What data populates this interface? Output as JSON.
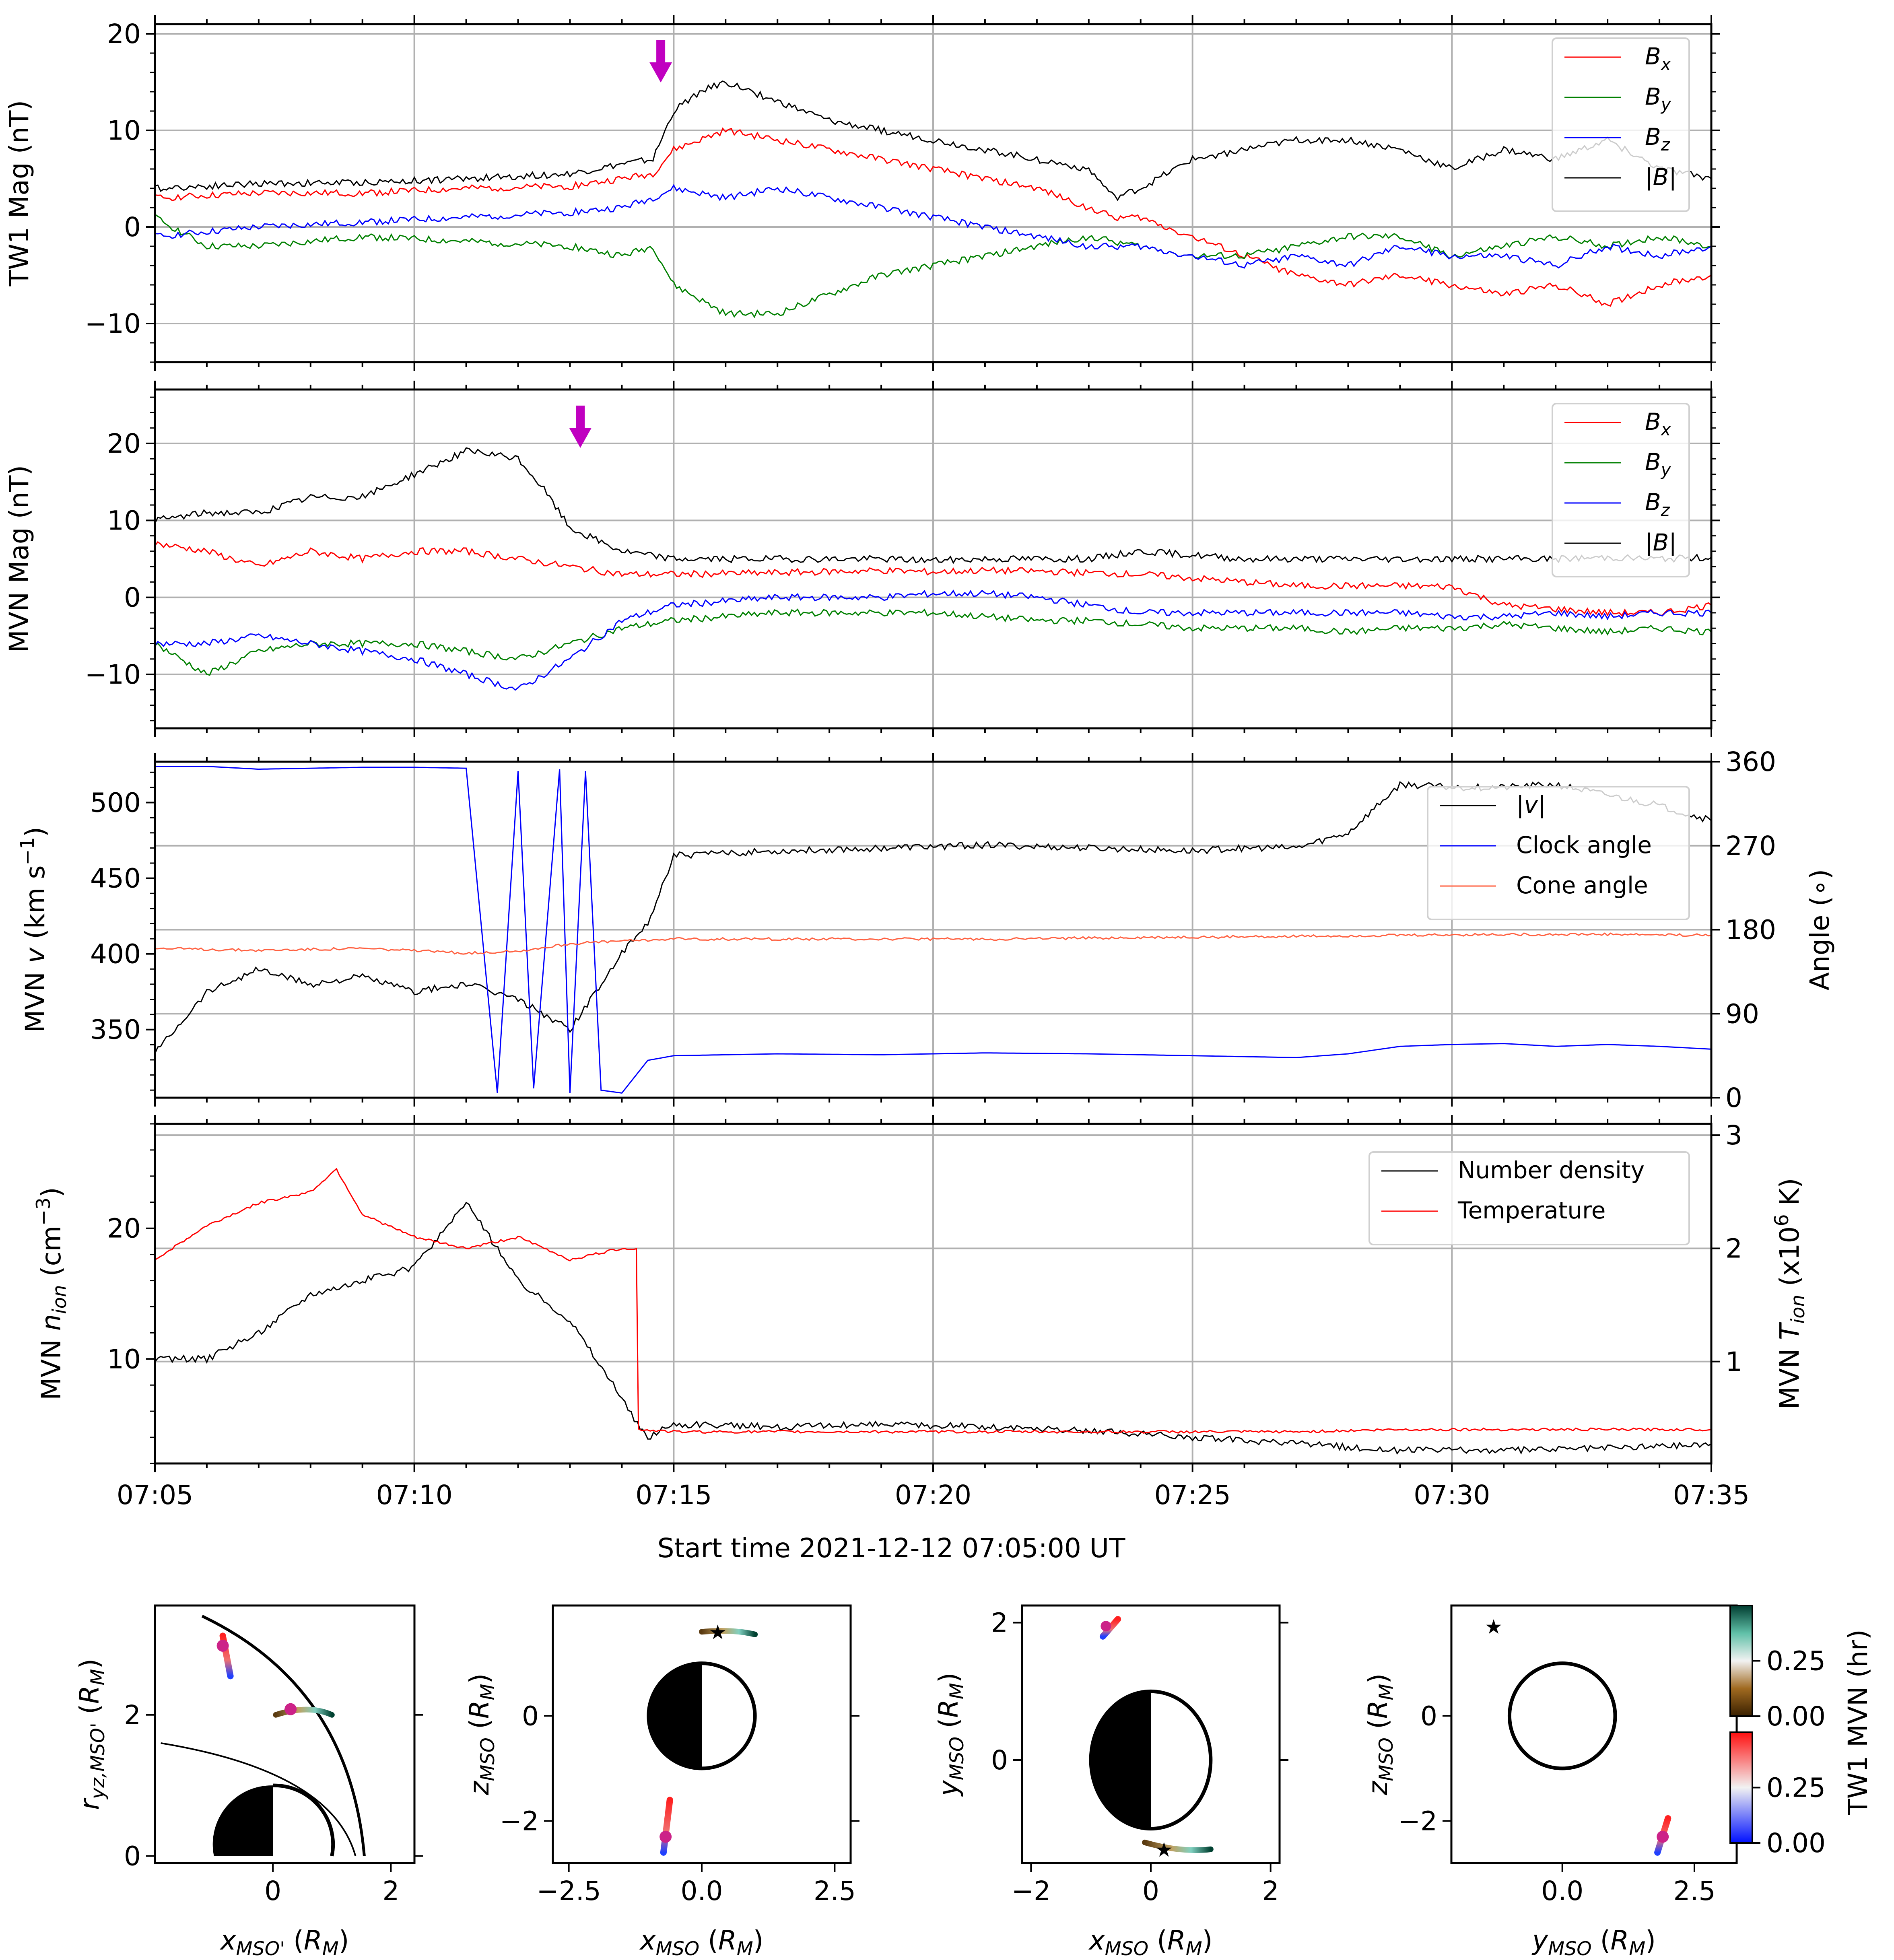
{
  "figure": {
    "xlabel": "Start time 2021-12-12 07:05:00 UT",
    "time_ticks": [
      "07:05",
      "07:10",
      "07:15",
      "07:20",
      "07:25",
      "07:30",
      "07:35"
    ]
  },
  "colors": {
    "bx": "#ff0000",
    "by": "#008000",
    "bz": "#0000ff",
    "bmag": "#000000",
    "arrow": "#c000c0",
    "grid": "#b0b0b0"
  },
  "chart_data": [
    {
      "id": "tw1_mag",
      "type": "line",
      "ylabel": "TW1 Mag (nT)",
      "x_range_min": [
        0,
        30
      ],
      "ylim": [
        -14,
        21
      ],
      "yticks": [
        {
          "v": -10,
          "t": "−10"
        },
        {
          "v": 0,
          "t": "0"
        },
        {
          "v": 10,
          "t": "10"
        },
        {
          "v": 20,
          "t": "20"
        }
      ],
      "legend": [
        "B_x",
        "B_y",
        "B_z",
        "|B|"
      ],
      "arrow_at_min": 9.75,
      "series": [
        {
          "name": "Bx",
          "color": "#ff0000",
          "x": [
            0,
            2,
            4,
            6,
            8,
            9,
            9.6,
            10,
            11,
            12,
            13,
            14,
            15,
            16,
            17,
            18,
            18.5,
            19,
            20,
            21,
            22,
            23,
            24,
            25,
            26,
            27,
            28,
            29,
            30
          ],
          "y": [
            3,
            3.5,
            3.5,
            4,
            4.2,
            5,
            5.5,
            8,
            10,
            9,
            8,
            7,
            6,
            5,
            4,
            2,
            1,
            1,
            -1,
            -3,
            -5,
            -6,
            -5,
            -6,
            -7,
            -6,
            -8,
            -6,
            -5
          ]
        },
        {
          "name": "By",
          "color": "#008000",
          "x": [
            0,
            1,
            2,
            4,
            6,
            8,
            9,
            9.6,
            10,
            11,
            12,
            13,
            14,
            15,
            16,
            17,
            18,
            19,
            20,
            21,
            22,
            23,
            24,
            25,
            26,
            27,
            28,
            29,
            30
          ],
          "y": [
            1,
            -2,
            -2,
            -1,
            -1.5,
            -2,
            -3,
            -2,
            -6,
            -9,
            -9,
            -7,
            -5,
            -4,
            -3,
            -2,
            -1,
            -2,
            -3,
            -3,
            -2,
            -1,
            -1,
            -3,
            -2,
            -1,
            -2,
            -1,
            -2
          ]
        },
        {
          "name": "Bz",
          "color": "#0000ff",
          "x": [
            0,
            2,
            4,
            6,
            8,
            9,
            9.6,
            10,
            11,
            12,
            13,
            14,
            15,
            16,
            17,
            18,
            19,
            20,
            21,
            22,
            23,
            24,
            25,
            26,
            27,
            28,
            29,
            30
          ],
          "y": [
            -1,
            0,
            0.5,
            1,
            1.5,
            2,
            3,
            4,
            3,
            4,
            3,
            2,
            1,
            0,
            -1,
            -2,
            -2,
            -3,
            -4,
            -3,
            -4,
            -2,
            -3,
            -3,
            -4,
            -2,
            -3,
            -2
          ]
        },
        {
          "name": "|B|",
          "color": "#000000",
          "x": [
            0,
            2,
            4,
            6,
            8,
            9,
            9.6,
            10,
            10.5,
            11,
            12,
            13,
            14,
            15,
            16,
            17,
            18,
            18.5,
            19,
            20,
            21,
            22,
            23,
            24,
            25,
            26,
            27,
            28,
            29,
            30
          ],
          "y": [
            4,
            4.5,
            4.6,
            5,
            5.5,
            6.5,
            7,
            12,
            14,
            15,
            13,
            11,
            10,
            9,
            8,
            7,
            6,
            3,
            4,
            7,
            8,
            9,
            9,
            8,
            6,
            8,
            7,
            9,
            6,
            5
          ]
        }
      ]
    },
    {
      "id": "mvn_mag",
      "type": "line",
      "ylabel": "MVN Mag (nT)",
      "x_range_min": [
        0,
        30
      ],
      "ylim": [
        -17,
        27
      ],
      "yticks": [
        {
          "v": -10,
          "t": "−10"
        },
        {
          "v": 0,
          "t": "0"
        },
        {
          "v": 10,
          "t": "10"
        },
        {
          "v": 20,
          "t": "20"
        }
      ],
      "legend": [
        "B_x",
        "B_y",
        "B_z",
        "|B|"
      ],
      "arrow_at_min": 8.2,
      "series": [
        {
          "name": "Bx",
          "color": "#ff0000",
          "x": [
            0,
            1,
            2,
            3,
            4,
            5,
            6,
            7,
            8,
            9,
            10,
            12,
            14,
            15,
            16,
            17,
            18,
            19,
            20,
            21,
            22,
            23,
            24,
            25,
            26,
            27,
            28,
            29,
            30
          ],
          "y": [
            7,
            6,
            4,
            6,
            5,
            6,
            6,
            5,
            4,
            3,
            3,
            3.2,
            3.5,
            3.3,
            3.5,
            3.4,
            3.2,
            3,
            2.5,
            2,
            1.5,
            1.5,
            1.5,
            1.4,
            -1,
            -1.5,
            -2,
            -2,
            -1
          ]
        },
        {
          "name": "By",
          "color": "#008000",
          "x": [
            0,
            1,
            2,
            3,
            4,
            5,
            6,
            7,
            8,
            9,
            10,
            12,
            14,
            15,
            16,
            17,
            18,
            19,
            20,
            21,
            22,
            23,
            24,
            25,
            26,
            27,
            28,
            29,
            30
          ],
          "y": [
            -6,
            -10,
            -7,
            -6,
            -6,
            -6,
            -7,
            -8,
            -6,
            -4,
            -3,
            -2,
            -2,
            -2,
            -2.5,
            -3,
            -3,
            -3.5,
            -4,
            -4,
            -4,
            -4.5,
            -4,
            -4,
            -3.5,
            -4,
            -4.5,
            -4,
            -4.5
          ]
        },
        {
          "name": "Bz",
          "color": "#0000ff",
          "x": [
            0,
            1,
            2,
            3,
            4,
            5,
            6,
            7,
            8,
            9,
            10,
            12,
            14,
            15,
            16,
            17,
            18,
            19,
            20,
            21,
            22,
            23,
            24,
            25,
            26,
            27,
            28,
            29,
            30
          ],
          "y": [
            -6,
            -6,
            -5,
            -6,
            -7,
            -8,
            -10,
            -12,
            -8,
            -3,
            -1,
            0,
            0,
            0.5,
            0.5,
            0,
            -1,
            -2,
            -2,
            -2,
            -2,
            -2,
            -2,
            -2.5,
            -2.5,
            -2,
            -2.5,
            -2,
            -2
          ]
        },
        {
          "name": "|B|",
          "color": "#000000",
          "x": [
            0,
            1,
            2,
            3,
            4,
            5,
            6,
            7,
            7.5,
            8,
            9,
            10,
            12,
            14,
            15,
            16,
            17,
            18,
            19,
            20,
            21,
            22,
            23,
            24,
            25,
            26,
            27,
            28,
            29,
            30
          ],
          "y": [
            10,
            11,
            11,
            13,
            13,
            16,
            19,
            18,
            14,
            9,
            6,
            5,
            5,
            5,
            4.8,
            5,
            5,
            5,
            6,
            5.5,
            5,
            5,
            5,
            5,
            5,
            5,
            5,
            5.2,
            5,
            5.2
          ]
        }
      ]
    },
    {
      "id": "mvn_velocity",
      "type": "line",
      "ylabel": "MVN v (km s⁻¹)",
      "ylabel_right": "Angle (∘)",
      "x_range_min": [
        0,
        30
      ],
      "ylim": [
        305,
        527
      ],
      "ylim_right": [
        0,
        360
      ],
      "yticks": [
        {
          "v": 350,
          "t": "350"
        },
        {
          "v": 400,
          "t": "400"
        },
        {
          "v": 450,
          "t": "450"
        },
        {
          "v": 500,
          "t": "500"
        }
      ],
      "yticks_right": [
        {
          "v": 0,
          "t": "0"
        },
        {
          "v": 90,
          "t": "90"
        },
        {
          "v": 180,
          "t": "180"
        },
        {
          "v": 270,
          "t": "270"
        },
        {
          "v": 360,
          "t": "360"
        }
      ],
      "legend": [
        "|v|",
        "Clock angle",
        "Cone angle"
      ],
      "series": [
        {
          "name": "|v|",
          "axis": "left",
          "color": "#000000",
          "x": [
            0,
            1,
            2,
            3,
            4,
            5,
            6,
            7,
            8,
            9,
            9.5,
            10,
            12,
            14,
            16,
            18,
            20,
            21,
            22,
            23,
            24,
            25,
            26,
            27,
            28,
            29,
            30
          ],
          "y": [
            335,
            375,
            390,
            380,
            385,
            375,
            380,
            370,
            350,
            400,
            420,
            465,
            468,
            470,
            472,
            470,
            468,
            470,
            470,
            480,
            512,
            510,
            510,
            512,
            505,
            498,
            488
          ]
        },
        {
          "name": "Clock angle",
          "axis": "right",
          "color": "#0000ff",
          "x": [
            0,
            1,
            2,
            3,
            4,
            5,
            6,
            6.6,
            7,
            7.3,
            7.8,
            8,
            8.3,
            8.6,
            9,
            9.5,
            10,
            12,
            14,
            16,
            18,
            20,
            21,
            22,
            23,
            24,
            25,
            26,
            27,
            28,
            29,
            30
          ],
          "y": [
            355,
            355,
            352,
            353,
            354,
            354,
            353,
            5,
            350,
            10,
            352,
            5,
            350,
            8,
            5,
            40,
            45,
            47,
            46,
            48,
            47,
            45,
            44,
            43,
            47,
            55,
            57,
            58,
            55,
            57,
            55,
            52
          ]
        },
        {
          "name": "Cone angle",
          "axis": "right",
          "color": "#ff6040",
          "x": [
            0,
            2,
            4,
            6,
            7,
            8,
            9,
            10,
            12,
            14,
            16,
            18,
            20,
            22,
            24,
            26,
            28,
            30
          ],
          "y": [
            160,
            158,
            160,
            155,
            157,
            165,
            168,
            170,
            170,
            170,
            170,
            171,
            172,
            173,
            174,
            175,
            175,
            174
          ]
        }
      ]
    },
    {
      "id": "mvn_density_temp",
      "type": "line",
      "ylabel": "MVN n_ion (cm⁻³)",
      "ylabel_right": "MVN T_ion (x10⁶ K)",
      "x_range_min": [
        0,
        30
      ],
      "ylim": [
        2,
        28
      ],
      "ylim_right": [
        0.1,
        3.1
      ],
      "yticks": [
        {
          "v": 10,
          "t": "10"
        },
        {
          "v": 20,
          "t": "20"
        }
      ],
      "yticks_right": [
        {
          "v": 1,
          "t": "1"
        },
        {
          "v": 2,
          "t": "2"
        },
        {
          "v": 3,
          "t": "3"
        }
      ],
      "legend": [
        "Number density",
        "Temperature"
      ],
      "series": [
        {
          "name": "Number density",
          "axis": "left",
          "color": "#000000",
          "x": [
            0,
            1,
            2,
            3,
            4,
            5,
            6,
            7,
            8,
            9,
            9.3,
            9.5,
            10,
            12,
            14,
            16,
            18,
            20,
            22,
            24,
            26,
            28,
            30
          ],
          "y": [
            10,
            10,
            12,
            15,
            16,
            17,
            22,
            16,
            13,
            7,
            5,
            4,
            5,
            4.8,
            5,
            4.8,
            4.5,
            4,
            3.5,
            3,
            3,
            3.2,
            3.5
          ]
        },
        {
          "name": "Temperature",
          "axis": "right",
          "color": "#ff0000",
          "x": [
            0,
            1,
            2,
            3,
            3.5,
            4,
            5,
            6,
            7,
            8,
            9,
            9.28,
            9.32,
            10,
            12,
            14,
            16,
            18,
            20,
            22,
            24,
            26,
            28,
            30
          ],
          "y": [
            1.9,
            2.2,
            2.4,
            2.5,
            2.7,
            2.3,
            2.1,
            2.0,
            2.1,
            1.9,
            2.0,
            2.0,
            0.4,
            0.38,
            0.38,
            0.38,
            0.38,
            0.38,
            0.38,
            0.38,
            0.4,
            0.4,
            0.4,
            0.4
          ]
        }
      ]
    }
  ],
  "orbit_panels": [
    {
      "id": "cyl",
      "xlabel": "x_MSO' (R_M)",
      "ylabel": "r_yz,MSO' (R_M)",
      "xlim": [
        -2.0,
        2.4
      ],
      "ylim": [
        -0.1,
        3.55
      ],
      "xticks": [
        {
          "v": 0,
          "t": "0"
        },
        {
          "v": 2,
          "t": "2"
        }
      ],
      "yticks": [
        {
          "v": 0,
          "t": "0"
        },
        {
          "v": 2,
          "t": "2"
        }
      ]
    },
    {
      "id": "xz",
      "xlabel": "x_MSO (R_M)",
      "ylabel": "z_MSO (R_M)",
      "xlim": [
        -2.8,
        2.8
      ],
      "ylim": [
        -2.8,
        2.1
      ],
      "xticks": [
        {
          "v": -2.5,
          "t": "−2.5"
        },
        {
          "v": 0,
          "t": "0.0"
        },
        {
          "v": 2.5,
          "t": "2.5"
        }
      ],
      "yticks": [
        {
          "v": -2,
          "t": "−2"
        },
        {
          "v": 0,
          "t": "0"
        }
      ]
    },
    {
      "id": "xy",
      "xlabel": "x_MSO (R_M)",
      "ylabel": "y_MSO (R_M)",
      "xlim": [
        -2.15,
        2.15
      ],
      "ylim": [
        -1.5,
        2.25
      ],
      "xticks": [
        {
          "v": -2,
          "t": "−2"
        },
        {
          "v": 0,
          "t": "0"
        },
        {
          "v": 2,
          "t": "2"
        }
      ],
      "yticks": [
        {
          "v": 0,
          "t": "0"
        },
        {
          "v": 2,
          "t": "2"
        }
      ]
    },
    {
      "id": "yz",
      "xlabel": "y_MSO (R_M)",
      "ylabel": "z_MSO (R_M)",
      "xlim": [
        -2.1,
        3.3
      ],
      "ylim": [
        -2.8,
        2.1
      ],
      "xticks": [
        {
          "v": 0,
          "t": "0.0"
        },
        {
          "v": 2.5,
          "t": "2.5"
        }
      ],
      "yticks": [
        {
          "v": -2,
          "t": "−2"
        },
        {
          "v": 0,
          "t": "0"
        }
      ]
    }
  ],
  "colorbars": {
    "label": "TW1 MVN (hr)",
    "tw1_ticks": [
      {
        "v": 0.0,
        "t": "0.00"
      },
      {
        "v": 0.25,
        "t": "0.25"
      }
    ],
    "mvn_ticks": [
      {
        "v": 0.0,
        "t": "0.00"
      },
      {
        "v": 0.25,
        "t": "0.25"
      }
    ],
    "range": [
      0,
      0.5
    ]
  }
}
